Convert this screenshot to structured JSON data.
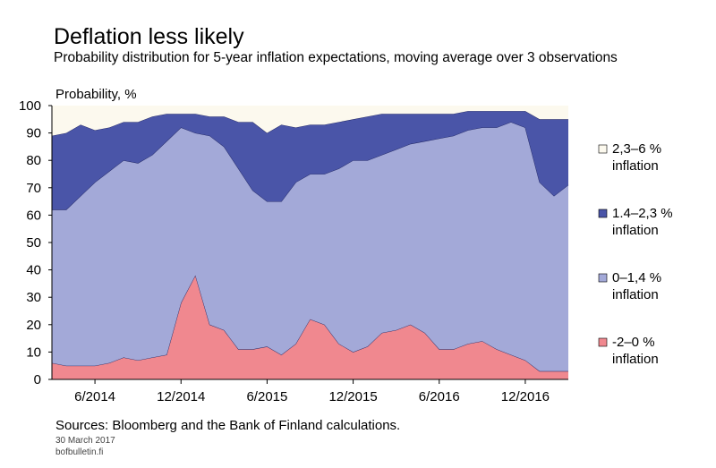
{
  "chart_data": {
    "type": "area",
    "title": "Deflation less likely",
    "subtitle": "Probability distribution for 5-year inflation expectations, moving average over 3 observations",
    "ylabel": "Probability, %",
    "ylim": [
      0,
      100
    ],
    "yticks": [
      0,
      10,
      20,
      30,
      40,
      50,
      60,
      70,
      80,
      90,
      100
    ],
    "xlim": [
      "2014-03",
      "2017-03"
    ],
    "xticks": [
      {
        "label": "6/2014",
        "date": "2014-06"
      },
      {
        "label": "12/2014",
        "date": "2014-12"
      },
      {
        "label": "6/2015",
        "date": "2015-06"
      },
      {
        "label": "12/2015",
        "date": "2015-12"
      },
      {
        "label": "6/2016",
        "date": "2016-06"
      },
      {
        "label": "12/2016",
        "date": "2016-12"
      }
    ],
    "stacked": true,
    "x": [
      "2014-03",
      "2014-04",
      "2014-05",
      "2014-06",
      "2014-07",
      "2014-08",
      "2014-09",
      "2014-10",
      "2014-11",
      "2014-12",
      "2015-01",
      "2015-02",
      "2015-03",
      "2015-04",
      "2015-05",
      "2015-06",
      "2015-07",
      "2015-08",
      "2015-09",
      "2015-10",
      "2015-11",
      "2015-12",
      "2016-01",
      "2016-02",
      "2016-03",
      "2016-04",
      "2016-05",
      "2016-06",
      "2016-07",
      "2016-08",
      "2016-09",
      "2016-10",
      "2016-11",
      "2016-12",
      "2017-01",
      "2017-02",
      "2017-03"
    ],
    "series": [
      {
        "name": "-2–0 %\ninflation",
        "color": "#f0888f",
        "values": [
          6,
          5,
          5,
          5,
          6,
          8,
          7,
          8,
          9,
          28,
          38,
          20,
          18,
          11,
          11,
          12,
          9,
          13,
          22,
          20,
          13,
          10,
          12,
          17,
          18,
          20,
          17,
          11,
          11,
          13,
          14,
          11,
          9,
          7,
          3,
          3,
          3
        ]
      },
      {
        "name": "0–1,4 %\ninflation",
        "color": "#a3a9d8",
        "values": [
          56,
          57,
          62,
          67,
          70,
          72,
          72,
          74,
          78,
          64,
          52,
          69,
          67,
          66,
          58,
          53,
          56,
          59,
          53,
          55,
          64,
          70,
          68,
          65,
          66,
          66,
          70,
          77,
          78,
          78,
          78,
          81,
          85,
          85,
          69,
          64,
          68
        ]
      },
      {
        "name": "1.4–2,3 %\ninflation",
        "color": "#4a55a8",
        "values": [
          27,
          28,
          26,
          19,
          16,
          14,
          15,
          14,
          10,
          5,
          7,
          7,
          11,
          17,
          25,
          25,
          28,
          20,
          18,
          18,
          17,
          15,
          16,
          15,
          13,
          11,
          10,
          9,
          8,
          7,
          6,
          6,
          4,
          6,
          23,
          28,
          24
        ]
      },
      {
        "name": "2,3–6 %\ninflation",
        "color": "#fcf9ee",
        "values": [
          11,
          10,
          7,
          9,
          8,
          6,
          6,
          4,
          3,
          3,
          3,
          4,
          4,
          6,
          6,
          10,
          7,
          8,
          7,
          7,
          6,
          5,
          4,
          3,
          3,
          3,
          3,
          3,
          3,
          2,
          2,
          2,
          2,
          2,
          5,
          5,
          5
        ]
      }
    ],
    "legend_position": "right",
    "grid": false
  },
  "footer": {
    "sources": "Sources: Bloomberg and the Bank of Finland calculations.",
    "date": "30 March 2017",
    "site": "bofbulletin.fi"
  }
}
